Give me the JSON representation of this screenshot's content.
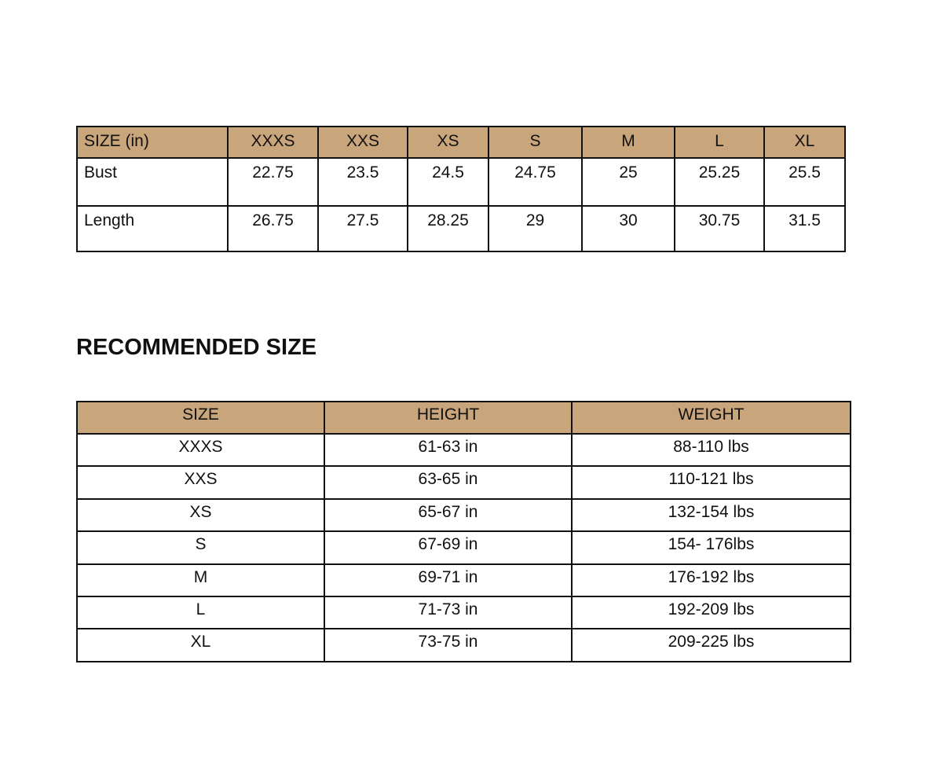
{
  "colors": {
    "header_fill": "#C9A57B",
    "border": "#111111"
  },
  "measurements": {
    "headers": [
      "SIZE (in)",
      "XXXS",
      "XXS",
      "XS",
      "S",
      "M",
      "L",
      "XL"
    ],
    "rows": [
      {
        "label": "Bust",
        "values": [
          "22.75",
          "23.5",
          "24.5",
          "24.75",
          "25",
          "25.25",
          "25.5"
        ]
      },
      {
        "label": "Length",
        "values": [
          "26.75",
          "27.5",
          "28.25",
          "29",
          "30",
          "30.75",
          "31.5"
        ]
      }
    ]
  },
  "recommended": {
    "title": "RECOMMENDED SIZE",
    "headers": [
      "SIZE",
      "HEIGHT",
      "WEIGHT"
    ],
    "rows": [
      [
        "XXXS",
        "61-63 in",
        "88-110 lbs"
      ],
      [
        "XXS",
        "63-65 in",
        "110-121 lbs"
      ],
      [
        "XS",
        "65-67 in",
        "132-154 lbs"
      ],
      [
        "S",
        "67-69 in",
        "154- 176lbs"
      ],
      [
        "M",
        "69-71 in",
        "176-192 lbs"
      ],
      [
        "L",
        "71-73 in",
        "192-209 lbs"
      ],
      [
        "XL",
        "73-75 in",
        "209-225 lbs"
      ]
    ]
  }
}
